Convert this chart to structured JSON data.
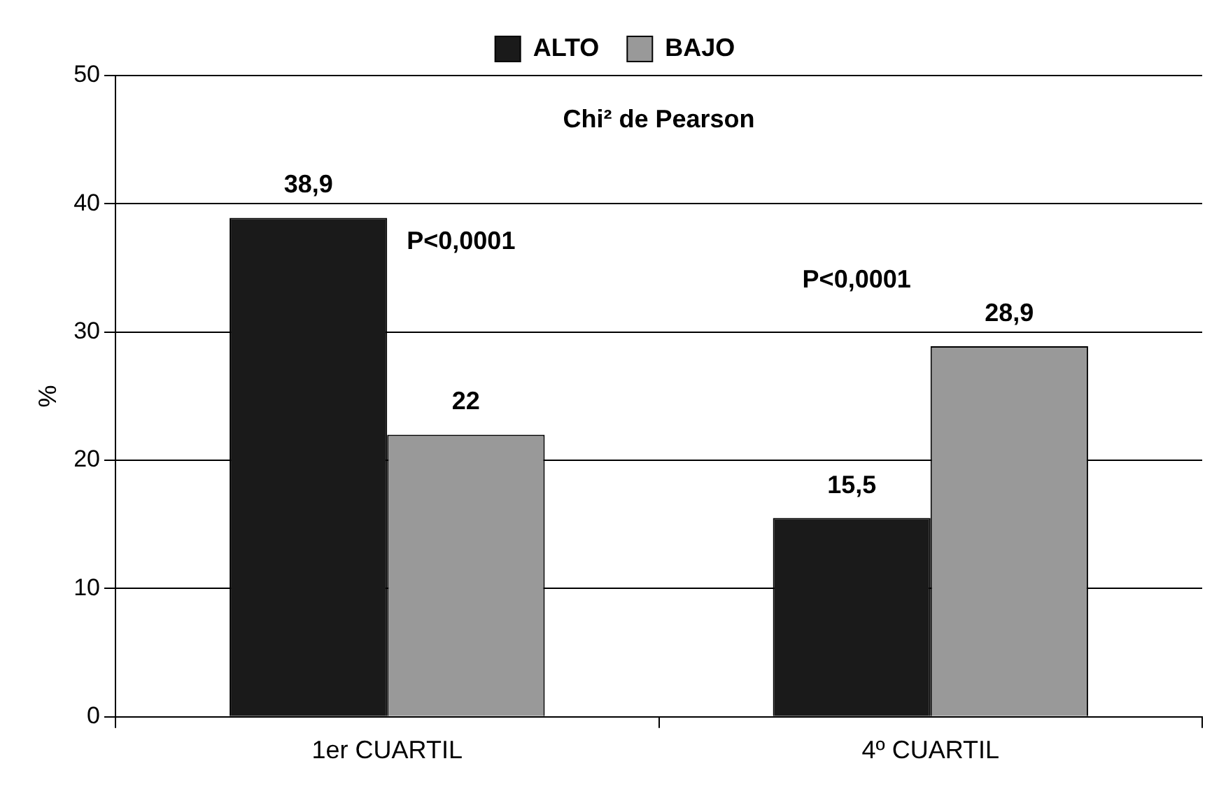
{
  "chart_data": {
    "type": "bar",
    "categories": [
      "1er CUARTIL",
      "4º CUARTIL"
    ],
    "series": [
      {
        "name": "ALTO",
        "color": "#1a1a1a",
        "values": [
          38.9,
          15.5
        ],
        "value_labels": [
          "38,9",
          "15,5"
        ]
      },
      {
        "name": "BAJO",
        "color": "#999999",
        "values": [
          22,
          28.9
        ],
        "value_labels": [
          "22",
          "28,9"
        ]
      }
    ],
    "ylabel": "%",
    "ylim": [
      0,
      50
    ],
    "yticks": [
      0,
      10,
      20,
      30,
      40,
      50
    ],
    "grid": "y",
    "legend": "top",
    "annotations": [
      "Chi² de Pearson",
      "P<0,0001",
      "P<0,0001"
    ]
  }
}
